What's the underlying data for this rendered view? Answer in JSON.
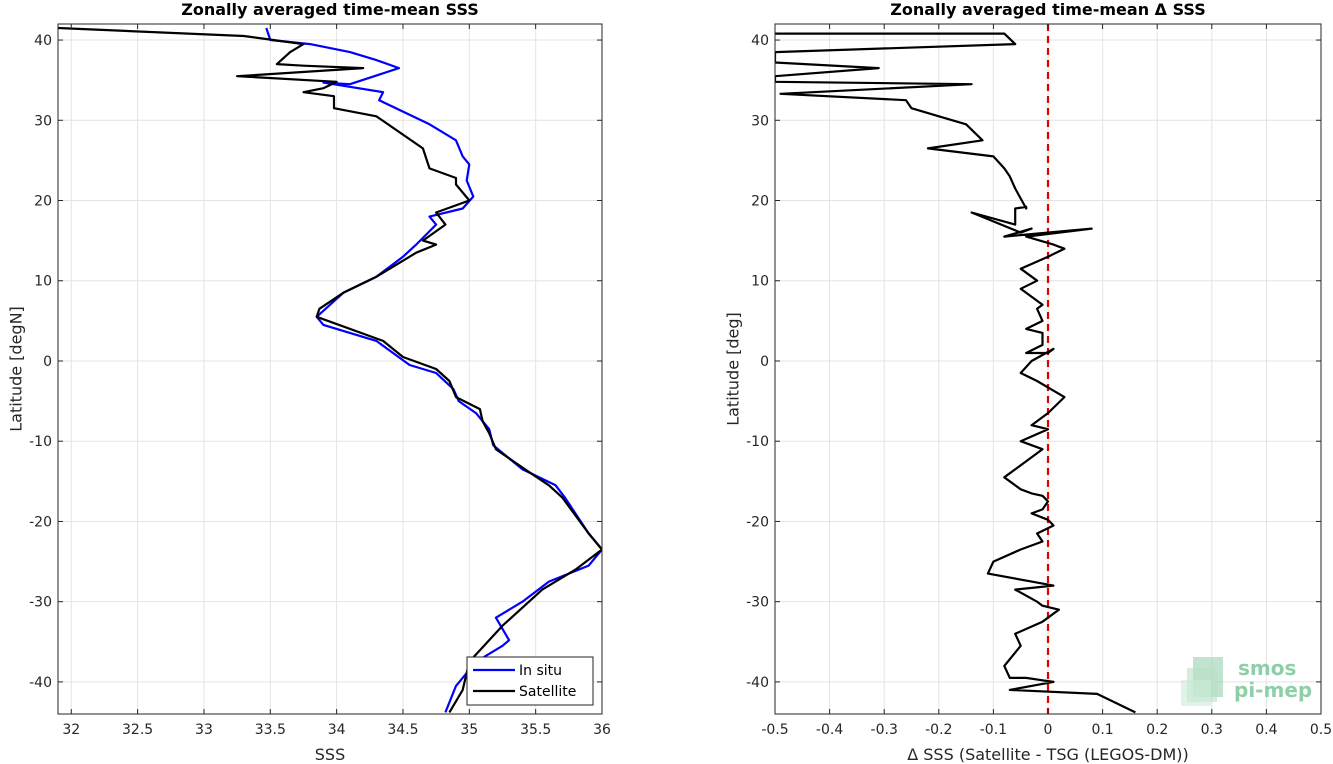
{
  "chart_data": [
    {
      "type": "line",
      "title": "Zonally averaged time-mean SSS",
      "xlabel": "SSS",
      "ylabel": "Latitude [degN]",
      "xlim": [
        31.9,
        36.0
      ],
      "ylim": [
        -44,
        42
      ],
      "xticks": [
        32,
        32.5,
        33,
        33.5,
        34,
        34.5,
        35,
        35.5,
        36
      ],
      "yticks": [
        -40,
        -30,
        -20,
        -10,
        0,
        10,
        20,
        30,
        40
      ],
      "grid": true,
      "legend_position": "bottom-right",
      "series": [
        {
          "name": "In situ",
          "color": "#0000ff",
          "x": [
            33.47,
            33.5,
            33.8,
            34.1,
            34.3,
            34.47,
            34.1,
            33.9,
            34.35,
            34.32,
            34.7,
            34.9,
            34.95,
            35.0,
            34.98,
            35.03,
            34.95,
            34.7,
            34.75,
            34.6,
            34.5,
            34.3,
            34.05,
            33.85,
            33.9,
            34.3,
            34.55,
            34.75,
            34.88,
            34.92,
            35.05,
            35.15,
            35.18,
            35.4,
            35.65,
            35.72,
            35.9,
            36.0,
            35.9,
            35.6,
            35.4,
            35.2,
            35.3,
            35.25,
            35.05,
            34.9,
            34.82
          ],
          "y": [
            41.5,
            40.0,
            39.5,
            38.5,
            37.5,
            36.5,
            34.5,
            34.7,
            33.5,
            32.5,
            29.5,
            27.5,
            25.5,
            24.5,
            22.5,
            20.5,
            19.0,
            18.0,
            17.0,
            14.5,
            13.0,
            10.5,
            8.5,
            5.5,
            4.5,
            2.5,
            -0.5,
            -1.5,
            -3.5,
            -5.0,
            -6.5,
            -8.5,
            -10.5,
            -13.5,
            -15.5,
            -17.0,
            -21.5,
            -23.5,
            -25.5,
            -27.5,
            -30.0,
            -32.0,
            -34.8,
            -35.5,
            -37.5,
            -40.5,
            -43.8
          ]
        },
        {
          "name": "Satellite",
          "color": "#000000",
          "x": [
            31.9,
            33.3,
            33.75,
            33.65,
            33.55,
            33.75,
            34.2,
            33.25,
            34.0,
            33.9,
            33.75,
            33.98,
            33.98,
            34.3,
            34.65,
            34.7,
            34.9,
            34.9,
            34.95,
            35.0,
            34.75,
            34.82,
            34.65,
            34.75,
            34.6,
            34.5,
            34.3,
            34.05,
            33.87,
            33.85,
            34.35,
            34.5,
            34.75,
            34.85,
            34.9,
            35.08,
            35.1,
            35.15,
            35.2,
            35.42,
            35.6,
            35.7,
            35.9,
            36.0,
            35.8,
            35.55,
            35.25,
            35.0,
            34.95,
            34.85
          ],
          "y": [
            41.5,
            40.5,
            39.5,
            38.5,
            37.0,
            36.8,
            36.5,
            35.5,
            34.8,
            34.0,
            33.5,
            33.0,
            31.5,
            30.5,
            26.5,
            24.0,
            22.8,
            22.0,
            21.0,
            20.0,
            18.5,
            17.0,
            15.0,
            14.5,
            13.5,
            12.5,
            10.5,
            8.5,
            6.5,
            5.5,
            2.5,
            0.5,
            -1.0,
            -2.5,
            -4.5,
            -6.0,
            -7.5,
            -9.0,
            -11.0,
            -13.5,
            -15.5,
            -17.0,
            -21.5,
            -23.5,
            -26.0,
            -28.5,
            -33.0,
            -37.5,
            -41.0,
            -43.8
          ]
        }
      ]
    },
    {
      "type": "line",
      "title": "Zonally averaged time-mean Δ SSS",
      "xlabel": "Δ SSS (Satellite - TSG (LEGOS-DM))",
      "ylabel": "Latitude [deg]",
      "xlim": [
        -0.5,
        0.5
      ],
      "ylim": [
        -44,
        42
      ],
      "xticks": [
        -0.5,
        -0.4,
        -0.3,
        -0.2,
        -0.1,
        0,
        0.1,
        0.2,
        0.3,
        0.4,
        0.5
      ],
      "yticks": [
        -40,
        -30,
        -20,
        -10,
        0,
        10,
        20,
        30,
        40
      ],
      "grid": true,
      "reference_line": {
        "x": 0,
        "color": "#dd0000",
        "style": "dashed"
      },
      "series": [
        {
          "color": "#000000",
          "x": [
            -0.5,
            -0.08,
            -0.06,
            -0.5,
            -0.5,
            -0.31,
            -0.5,
            -0.5,
            -0.14,
            -0.49,
            -0.26,
            -0.25,
            -0.2,
            -0.15,
            -0.12,
            -0.22,
            -0.1,
            -0.08,
            -0.07,
            -0.06,
            -0.04,
            -0.04,
            -0.06,
            -0.06,
            -0.14,
            -0.05,
            -0.03,
            -0.08,
            0.08,
            -0.04,
            0.01,
            0.03,
            0.0,
            -0.05,
            -0.02,
            -0.05,
            -0.03,
            -0.01,
            -0.02,
            -0.01,
            -0.04,
            -0.01,
            -0.01,
            -0.04,
            0.0,
            0.01,
            -0.03,
            -0.05,
            -0.02,
            0.03,
            0.0,
            -0.03,
            0.0,
            -0.05,
            -0.01,
            -0.04,
            -0.08,
            -0.05,
            -0.03,
            -0.01,
            0.0,
            -0.01,
            -0.03,
            0.0,
            0.01,
            -0.02,
            -0.01,
            -0.05,
            -0.1,
            -0.11,
            -0.03,
            0.01,
            -0.06,
            -0.02,
            -0.01,
            0.02,
            -0.01,
            -0.06,
            -0.05,
            -0.08,
            -0.07,
            -0.04,
            -0.01,
            0.01,
            -0.07,
            0.09,
            0.16
          ],
          "y": [
            40.8,
            40.8,
            39.5,
            38.5,
            37.2,
            36.5,
            35.5,
            34.8,
            34.5,
            33.3,
            32.5,
            31.5,
            30.5,
            29.5,
            27.5,
            26.5,
            25.5,
            24.0,
            23.0,
            21.5,
            19.0,
            19.2,
            19.0,
            17.0,
            18.5,
            16.0,
            16.5,
            15.5,
            16.5,
            15.5,
            14.5,
            14.0,
            13.0,
            11.5,
            10.0,
            9.0,
            8.0,
            7.0,
            6.5,
            5.0,
            4.0,
            3.5,
            2.0,
            1.0,
            1.0,
            1.5,
            0.0,
            -1.5,
            -2.5,
            -4.5,
            -6.5,
            -8.0,
            -8.5,
            -10.0,
            -11.0,
            -12.5,
            -14.5,
            -16.0,
            -16.5,
            -16.8,
            -17.5,
            -18.5,
            -19.0,
            -19.8,
            -20.5,
            -21.5,
            -22.5,
            -23.5,
            -25.0,
            -26.5,
            -27.5,
            -28.0,
            -28.5,
            -30.0,
            -30.5,
            -31.0,
            -32.5,
            -34.0,
            -35.5,
            -38.0,
            -39.5,
            -39.5,
            -39.8,
            -40.0,
            -41.0,
            -41.5,
            -43.8
          ]
        }
      ]
    }
  ],
  "logo": {
    "line1": "smos",
    "line2": "pi-mep"
  }
}
